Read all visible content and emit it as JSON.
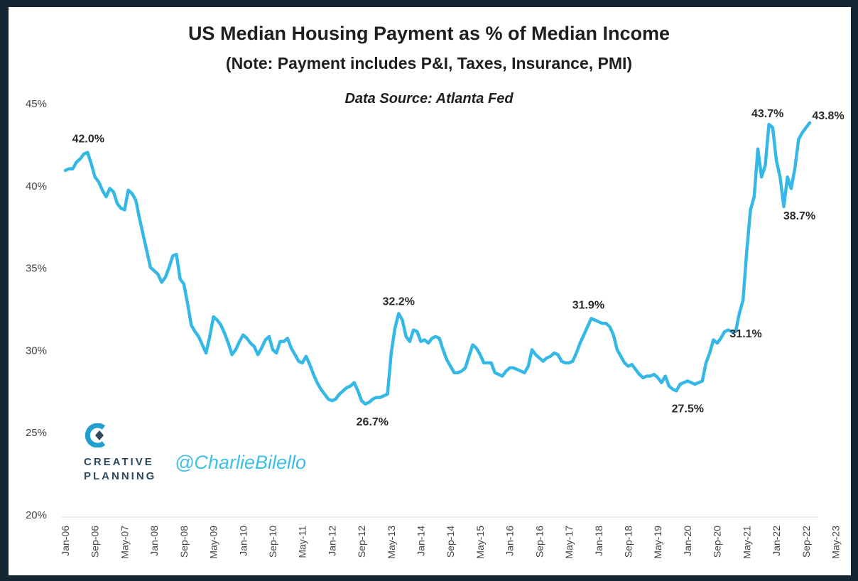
{
  "chart_data": {
    "type": "line",
    "title": "US Median Housing Payment as % of Median Income",
    "subtitle": "(Note: Payment includes P&I, Taxes, Insurance, PMI)",
    "source": "Data Source: Atlanta Fed",
    "x_ticks": [
      "Jan-06",
      "Sep-06",
      "May-07",
      "Jan-08",
      "Sep-08",
      "May-09",
      "Jan-10",
      "Sep-10",
      "May-11",
      "Jan-12",
      "Sep-12",
      "May-13",
      "Jan-14",
      "Sep-14",
      "May-15",
      "Jan-16",
      "Sep-16",
      "May-17",
      "Jan-18",
      "Sep-18",
      "May-19",
      "Jan-20",
      "Sep-20",
      "May-21",
      "Jan-22",
      "Sep-22",
      "May-23"
    ],
    "y_ticks": [
      "20%",
      "25%",
      "30%",
      "35%",
      "40%",
      "45%"
    ],
    "ylim": [
      20,
      45
    ],
    "x_unit": "months since Jan-06",
    "line_color": "#36b8e6",
    "series": [
      {
        "name": "Median payment % of median income",
        "points": [
          [
            0,
            40.9
          ],
          [
            1,
            41.0
          ],
          [
            2,
            41.0
          ],
          [
            3,
            41.4
          ],
          [
            4,
            41.6
          ],
          [
            5,
            41.9
          ],
          [
            6,
            42.0
          ],
          [
            7,
            41.3
          ],
          [
            8,
            40.5
          ],
          [
            9,
            40.2
          ],
          [
            10,
            39.7
          ],
          [
            11,
            39.3
          ],
          [
            12,
            39.8
          ],
          [
            13,
            39.6
          ],
          [
            14,
            38.9
          ],
          [
            15,
            38.6
          ],
          [
            16,
            38.5
          ],
          [
            17,
            39.7
          ],
          [
            18,
            39.5
          ],
          [
            19,
            39.1
          ],
          [
            20,
            38.0
          ],
          [
            21,
            37.0
          ],
          [
            22,
            36.0
          ],
          [
            23,
            35.0
          ],
          [
            24,
            34.8
          ],
          [
            25,
            34.6
          ],
          [
            26,
            34.1
          ],
          [
            27,
            34.4
          ],
          [
            28,
            35.0
          ],
          [
            29,
            35.7
          ],
          [
            30,
            35.8
          ],
          [
            31,
            34.3
          ],
          [
            32,
            34.0
          ],
          [
            33,
            32.8
          ],
          [
            34,
            31.5
          ],
          [
            35,
            31.1
          ],
          [
            36,
            30.8
          ],
          [
            37,
            30.3
          ],
          [
            38,
            29.8
          ],
          [
            39,
            30.8
          ],
          [
            40,
            32.0
          ],
          [
            41,
            31.8
          ],
          [
            42,
            31.5
          ],
          [
            43,
            31.0
          ],
          [
            44,
            30.4
          ],
          [
            45,
            29.7
          ],
          [
            46,
            30.0
          ],
          [
            47,
            30.5
          ],
          [
            48,
            30.9
          ],
          [
            49,
            30.7
          ],
          [
            50,
            30.4
          ],
          [
            51,
            30.2
          ],
          [
            52,
            29.7
          ],
          [
            53,
            30.1
          ],
          [
            54,
            30.6
          ],
          [
            55,
            30.8
          ],
          [
            56,
            30.0
          ],
          [
            57,
            29.8
          ],
          [
            58,
            30.5
          ],
          [
            59,
            30.5
          ],
          [
            60,
            30.7
          ],
          [
            61,
            30.1
          ],
          [
            62,
            29.7
          ],
          [
            63,
            29.3
          ],
          [
            64,
            29.2
          ],
          [
            65,
            29.6
          ],
          [
            66,
            29.1
          ],
          [
            67,
            28.5
          ],
          [
            68,
            28.0
          ],
          [
            69,
            27.6
          ],
          [
            70,
            27.3
          ],
          [
            71,
            27.0
          ],
          [
            72,
            26.9
          ],
          [
            73,
            27.0
          ],
          [
            74,
            27.3
          ],
          [
            75,
            27.5
          ],
          [
            76,
            27.7
          ],
          [
            77,
            27.8
          ],
          [
            78,
            28.0
          ],
          [
            79,
            27.5
          ],
          [
            80,
            26.9
          ],
          [
            81,
            26.7
          ],
          [
            82,
            26.8
          ],
          [
            83,
            27.0
          ],
          [
            84,
            27.1
          ],
          [
            85,
            27.1
          ],
          [
            86,
            27.2
          ],
          [
            87,
            27.3
          ],
          [
            88,
            29.8
          ],
          [
            89,
            31.3
          ],
          [
            90,
            32.2
          ],
          [
            91,
            31.8
          ],
          [
            92,
            30.8
          ],
          [
            93,
            30.5
          ],
          [
            94,
            31.2
          ],
          [
            95,
            31.1
          ],
          [
            96,
            30.5
          ],
          [
            97,
            30.6
          ],
          [
            98,
            30.4
          ],
          [
            99,
            30.7
          ],
          [
            100,
            30.8
          ],
          [
            101,
            30.7
          ],
          [
            102,
            30.0
          ],
          [
            103,
            29.4
          ],
          [
            104,
            29.0
          ],
          [
            105,
            28.6
          ],
          [
            106,
            28.6
          ],
          [
            107,
            28.7
          ],
          [
            108,
            28.9
          ],
          [
            109,
            29.6
          ],
          [
            110,
            30.3
          ],
          [
            111,
            30.1
          ],
          [
            112,
            29.7
          ],
          [
            113,
            29.2
          ],
          [
            114,
            29.2
          ],
          [
            115,
            29.2
          ],
          [
            116,
            28.6
          ],
          [
            117,
            28.5
          ],
          [
            118,
            28.4
          ],
          [
            119,
            28.7
          ],
          [
            120,
            28.9
          ],
          [
            121,
            28.9
          ],
          [
            122,
            28.8
          ],
          [
            123,
            28.7
          ],
          [
            124,
            28.6
          ],
          [
            125,
            29.0
          ],
          [
            126,
            30.0
          ],
          [
            127,
            29.7
          ],
          [
            128,
            29.5
          ],
          [
            129,
            29.3
          ],
          [
            130,
            29.5
          ],
          [
            131,
            29.6
          ],
          [
            132,
            29.8
          ],
          [
            133,
            29.7
          ],
          [
            134,
            29.3
          ],
          [
            135,
            29.2
          ],
          [
            136,
            29.2
          ],
          [
            137,
            29.3
          ],
          [
            138,
            29.8
          ],
          [
            139,
            30.4
          ],
          [
            140,
            30.9
          ],
          [
            141,
            31.4
          ],
          [
            142,
            31.9
          ],
          [
            143,
            31.8
          ],
          [
            144,
            31.7
          ],
          [
            145,
            31.6
          ],
          [
            146,
            31.6
          ],
          [
            147,
            31.4
          ],
          [
            148,
            30.9
          ],
          [
            149,
            30.0
          ],
          [
            150,
            29.6
          ],
          [
            151,
            29.2
          ],
          [
            152,
            29.0
          ],
          [
            153,
            29.1
          ],
          [
            154,
            28.8
          ],
          [
            155,
            28.5
          ],
          [
            156,
            28.3
          ],
          [
            157,
            28.4
          ],
          [
            158,
            28.4
          ],
          [
            159,
            28.5
          ],
          [
            160,
            28.3
          ],
          [
            161,
            28.0
          ],
          [
            162,
            28.4
          ],
          [
            163,
            27.8
          ],
          [
            164,
            27.6
          ],
          [
            165,
            27.5
          ],
          [
            166,
            27.9
          ],
          [
            167,
            28.0
          ],
          [
            168,
            28.1
          ],
          [
            169,
            28.0
          ],
          [
            170,
            27.9
          ],
          [
            171,
            28.0
          ],
          [
            172,
            28.1
          ],
          [
            173,
            29.2
          ],
          [
            174,
            29.8
          ],
          [
            175,
            30.6
          ],
          [
            176,
            30.4
          ],
          [
            177,
            30.7
          ],
          [
            178,
            31.1
          ],
          [
            179,
            31.2
          ],
          [
            180,
            31.1
          ],
          [
            181,
            31.1
          ],
          [
            182,
            32.2
          ],
          [
            183,
            33.0
          ],
          [
            184,
            36.0
          ],
          [
            185,
            38.5
          ],
          [
            186,
            39.3
          ],
          [
            187,
            42.2
          ],
          [
            188,
            40.5
          ],
          [
            189,
            41.2
          ],
          [
            190,
            43.7
          ],
          [
            191,
            43.5
          ],
          [
            192,
            41.5
          ],
          [
            193,
            40.5
          ],
          [
            194,
            38.7
          ],
          [
            195,
            40.5
          ],
          [
            196,
            39.8
          ],
          [
            197,
            41.0
          ],
          [
            198,
            42.8
          ],
          [
            199,
            43.2
          ],
          [
            200,
            43.5
          ],
          [
            201,
            43.8
          ]
        ]
      }
    ],
    "annotations": [
      {
        "x": 6,
        "y": 42.0,
        "text": "42.0%"
      },
      {
        "x": 81,
        "y": 26.7,
        "text": "26.7%"
      },
      {
        "x": 90,
        "y": 32.2,
        "text": "32.2%"
      },
      {
        "x": 142,
        "y": 31.9,
        "text": "31.9%"
      },
      {
        "x": 165,
        "y": 27.5,
        "text": "27.5%"
      },
      {
        "x": 178,
        "y": 31.1,
        "text": "31.1%"
      },
      {
        "x": 190,
        "y": 43.7,
        "text": "43.7%"
      },
      {
        "x": 194,
        "y": 38.7,
        "text": "38.7%"
      },
      {
        "x": 201,
        "y": 43.8,
        "text": "43.8%"
      }
    ]
  },
  "branding": {
    "logo_name_line1": "CREATIVE",
    "logo_name_line2": "PLANNING",
    "handle": "@CharlieBilello"
  }
}
